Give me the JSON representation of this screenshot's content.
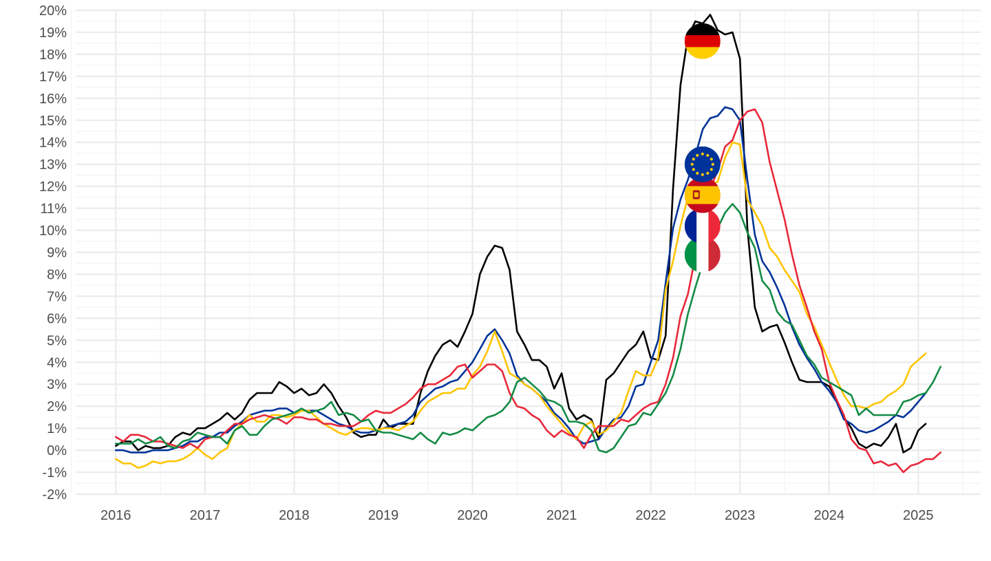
{
  "chart_data": {
    "type": "line",
    "title": "",
    "xlabel": "",
    "ylabel": "",
    "x_ticks": [
      "2016",
      "2017",
      "2018",
      "2019",
      "2020",
      "2021",
      "2022",
      "2023",
      "2024",
      "2025"
    ],
    "y_ticks": [
      "-2%",
      "-1%",
      "0%",
      "1%",
      "2%",
      "3%",
      "4%",
      "5%",
      "6%",
      "7%",
      "8%",
      "9%",
      "10%",
      "11%",
      "12%",
      "13%",
      "14%",
      "15%",
      "16%",
      "17%",
      "18%",
      "19%",
      "20%"
    ],
    "ylim": [
      -2,
      20
    ],
    "xlim": [
      2015.55,
      2025.7
    ],
    "grid": true,
    "legend": "flag markers",
    "x_start": "2016-01",
    "x_step": "monthly",
    "series": [
      {
        "flag": "Germany",
        "color": "#000000",
        "values": [
          0.2,
          0.4,
          0.4,
          0.0,
          0.2,
          0.1,
          0.1,
          0.2,
          0.6,
          0.8,
          0.7,
          1.0,
          1.0,
          1.2,
          1.4,
          1.7,
          1.4,
          1.7,
          2.3,
          2.6,
          2.6,
          2.6,
          3.1,
          2.9,
          2.6,
          2.8,
          2.5,
          2.6,
          3.0,
          2.6,
          2.0,
          1.5,
          0.8,
          0.6,
          0.7,
          0.7,
          1.4,
          1.0,
          1.2,
          1.2,
          1.2,
          2.6,
          3.6,
          4.3,
          4.8,
          5.0,
          4.7,
          5.4,
          6.2,
          8.0,
          8.8,
          9.3,
          9.2,
          8.2,
          5.4,
          4.8,
          4.1,
          4.1,
          3.8,
          2.8,
          3.5,
          1.9,
          1.4,
          1.6,
          1.4,
          0.5,
          3.2,
          3.5,
          4.0,
          4.5,
          4.8,
          5.4,
          4.2,
          4.1,
          5.2,
          11.9,
          16.6,
          18.8,
          19.5,
          19.4,
          19.8,
          19.1,
          18.9,
          19.0,
          17.8,
          10.1,
          6.5,
          5.4,
          5.6,
          5.7,
          4.9,
          4.0,
          3.2,
          3.1,
          3.1,
          3.1,
          2.9,
          2.3,
          1.5,
          1.0,
          0.3,
          0.1,
          0.3,
          0.2,
          0.6,
          1.2,
          -0.1,
          0.1,
          0.9,
          1.2
        ]
      },
      {
        "flag": "European Union",
        "color": "#003399",
        "values": [
          0.0,
          0.0,
          -0.1,
          -0.1,
          -0.1,
          0.0,
          0.0,
          0.0,
          0.1,
          0.2,
          0.4,
          0.4,
          0.6,
          0.6,
          0.8,
          0.8,
          1.1,
          1.3,
          1.6,
          1.7,
          1.8,
          1.8,
          1.9,
          1.9,
          1.7,
          1.8,
          1.8,
          1.8,
          1.6,
          1.4,
          1.2,
          1.1,
          0.9,
          0.8,
          0.8,
          0.9,
          1.0,
          1.1,
          1.2,
          1.3,
          1.6,
          2.2,
          2.5,
          2.8,
          2.9,
          3.1,
          3.2,
          3.6,
          4.0,
          4.6,
          5.2,
          5.5,
          5.0,
          4.4,
          3.4,
          3.0,
          2.8,
          2.5,
          2.2,
          1.7,
          1.4,
          1.0,
          0.5,
          0.3,
          0.4,
          0.5,
          1.0,
          1.4,
          1.5,
          2.0,
          2.9,
          3.0,
          4.0,
          5.0,
          7.6,
          10.1,
          11.4,
          12.3,
          13.4,
          14.6,
          15.1,
          15.2,
          15.6,
          15.5,
          15.0,
          12.3,
          9.8,
          8.6,
          8.1,
          7.4,
          6.6,
          5.6,
          4.8,
          4.2,
          3.7,
          3.1,
          2.7,
          2.2,
          1.4,
          1.2,
          0.9,
          0.8,
          0.9,
          1.1,
          1.3,
          1.6,
          1.5,
          1.8,
          2.2,
          2.6
        ]
      },
      {
        "flag": "Spain",
        "color": "#FFC400",
        "values": [
          -0.4,
          -0.6,
          -0.6,
          -0.8,
          -0.7,
          -0.5,
          -0.6,
          -0.5,
          -0.5,
          -0.4,
          -0.2,
          0.1,
          -0.2,
          -0.4,
          -0.1,
          0.1,
          0.9,
          1.2,
          1.6,
          1.3,
          1.3,
          1.6,
          1.6,
          1.5,
          1.6,
          1.8,
          1.8,
          1.5,
          1.2,
          1.0,
          0.8,
          0.7,
          0.9,
          1.0,
          1.0,
          0.9,
          1.0,
          1.0,
          0.9,
          1.1,
          1.3,
          1.8,
          2.2,
          2.4,
          2.6,
          2.6,
          2.8,
          2.8,
          3.4,
          3.8,
          4.5,
          5.4,
          4.5,
          3.5,
          3.3,
          3.0,
          2.8,
          2.5,
          2.0,
          1.6,
          1.2,
          0.8,
          0.5,
          1.1,
          1.3,
          0.7,
          0.9,
          1.3,
          1.7,
          2.7,
          3.6,
          3.4,
          3.4,
          4.2,
          7.3,
          8.6,
          10.2,
          11.5,
          12.5,
          12.7,
          12.1,
          12.2,
          13.3,
          14.0,
          13.9,
          11.4,
          10.8,
          10.2,
          9.2,
          8.8,
          8.2,
          7.7,
          7.2,
          6.2,
          5.6,
          4.8,
          4.0,
          3.2,
          2.5,
          2.0,
          2.0,
          1.9,
          2.1,
          2.2,
          2.5,
          2.7,
          3.0,
          3.8,
          4.1,
          4.4
        ]
      },
      {
        "flag": "France",
        "color": "#E8283A",
        "values": [
          0.6,
          0.4,
          0.7,
          0.7,
          0.6,
          0.4,
          0.4,
          0.3,
          0.2,
          0.1,
          0.3,
          0.1,
          0.5,
          0.6,
          0.6,
          0.9,
          1.2,
          1.2,
          1.4,
          1.5,
          1.6,
          1.5,
          1.4,
          1.2,
          1.5,
          1.5,
          1.4,
          1.4,
          1.2,
          1.2,
          1.1,
          1.1,
          1.1,
          1.3,
          1.6,
          1.8,
          1.7,
          1.7,
          1.9,
          2.1,
          2.4,
          2.8,
          3.0,
          3.0,
          3.2,
          3.4,
          3.8,
          3.9,
          3.3,
          3.6,
          3.9,
          3.9,
          3.6,
          2.6,
          2.0,
          1.9,
          1.6,
          1.4,
          0.9,
          0.6,
          0.9,
          0.7,
          0.6,
          0.1,
          0.7,
          1.1,
          1.1,
          1.1,
          1.4,
          1.3,
          1.6,
          1.9,
          2.1,
          2.2,
          3.0,
          4.2,
          6.1,
          7.1,
          8.8,
          10.5,
          11.9,
          12.7,
          13.8,
          14.1,
          15.0,
          15.4,
          15.5,
          14.9,
          13.1,
          11.8,
          10.5,
          8.9,
          7.5,
          6.5,
          5.4,
          4.6,
          3.1,
          2.3,
          1.6,
          0.5,
          0.1,
          0.0,
          -0.6,
          -0.5,
          -0.7,
          -0.6,
          -1.0,
          -0.7,
          -0.6,
          -0.4,
          -0.4,
          -0.1
        ]
      },
      {
        "flag": "Italy",
        "color": "#138B45",
        "values": [
          0.3,
          0.3,
          0.3,
          0.5,
          0.3,
          0.4,
          0.6,
          0.2,
          0.1,
          0.4,
          0.5,
          0.8,
          0.7,
          0.6,
          0.6,
          0.3,
          0.9,
          1.1,
          0.7,
          0.7,
          1.1,
          1.4,
          1.5,
          1.6,
          1.7,
          1.9,
          1.7,
          1.8,
          1.9,
          2.2,
          1.6,
          1.7,
          1.6,
          1.3,
          1.4,
          0.9,
          0.8,
          0.8,
          0.7,
          0.6,
          0.5,
          0.8,
          0.5,
          0.3,
          0.8,
          0.7,
          0.8,
          1.0,
          0.9,
          1.2,
          1.5,
          1.6,
          1.8,
          2.2,
          3.1,
          3.3,
          3.0,
          2.7,
          2.3,
          2.2,
          2.0,
          1.3,
          1.3,
          1.2,
          0.9,
          0.0,
          -0.1,
          0.1,
          0.6,
          1.1,
          1.2,
          1.7,
          1.6,
          2.1,
          2.6,
          3.4,
          4.6,
          6.2,
          7.4,
          8.5,
          9.3,
          10.1,
          10.8,
          11.2,
          10.8,
          9.9,
          9.2,
          7.7,
          7.3,
          6.3,
          5.9,
          5.7,
          5.0,
          4.3,
          3.9,
          3.3,
          3.1,
          2.9,
          2.7,
          2.5,
          1.6,
          1.9,
          1.6,
          1.6,
          1.6,
          1.6,
          2.2,
          2.3,
          2.5,
          2.6,
          3.1,
          3.8
        ]
      }
    ],
    "flag_markers": [
      {
        "flag": "Germany",
        "icon": "germany-flag-icon",
        "x": 2022.58,
        "y": 18.6
      },
      {
        "flag": "European Union",
        "icon": "eu-flag-icon",
        "x": 2022.58,
        "y": 13.0
      },
      {
        "flag": "Spain",
        "icon": "spain-flag-icon",
        "x": 2022.58,
        "y": 11.6
      },
      {
        "flag": "France",
        "icon": "france-flag-icon",
        "x": 2022.58,
        "y": 10.2
      },
      {
        "flag": "Italy",
        "icon": "italy-flag-icon",
        "x": 2022.58,
        "y": 8.9
      }
    ]
  }
}
